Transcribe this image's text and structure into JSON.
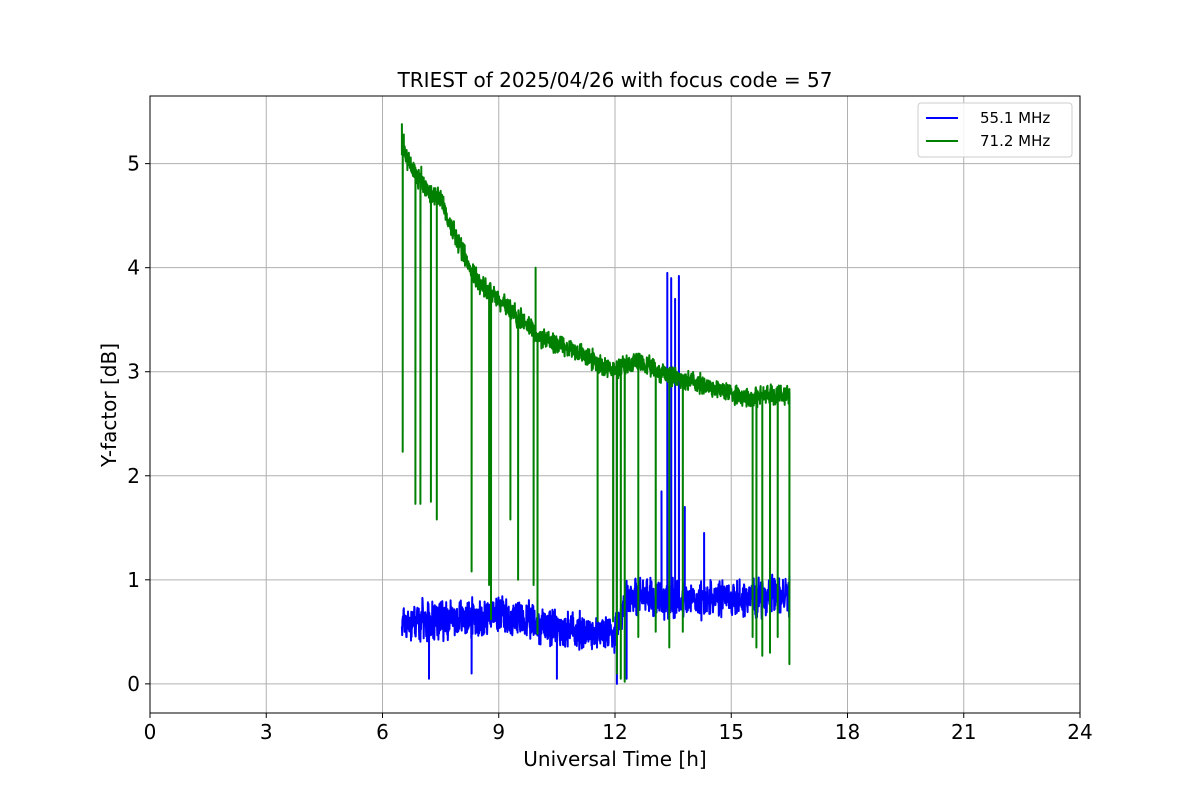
{
  "chart_data": {
    "type": "line",
    "title": "TRIEST of 2025/04/26 with focus code = 57",
    "xlabel": "Universal Time [h]",
    "ylabel": "Y-factor [dB]",
    "xlim": [
      0,
      24
    ],
    "ylim": [
      -0.28,
      5.65
    ],
    "x_ticks": [
      0,
      3,
      6,
      9,
      12,
      15,
      18,
      21,
      24
    ],
    "y_ticks": [
      0,
      1,
      2,
      3,
      4,
      5
    ],
    "grid": true,
    "legend_position": "top-right",
    "colors": {
      "blue": "#0000ff",
      "green": "#008000"
    },
    "series": [
      {
        "name": "55.1 MHz",
        "color": "#0000ff",
        "x_range": [
          6.5,
          16.5
        ],
        "baseline": [
          [
            6.5,
            0.6
          ],
          [
            9.0,
            0.65
          ],
          [
            11.0,
            0.5
          ],
          [
            12.0,
            0.5
          ],
          [
            12.3,
            0.85
          ],
          [
            14.0,
            0.8
          ],
          [
            16.5,
            0.85
          ]
        ],
        "noise_amplitude": 0.22,
        "spikes": [
          [
            13.35,
            3.95
          ],
          [
            13.45,
            3.9
          ],
          [
            13.55,
            3.7
          ],
          [
            13.65,
            3.92
          ],
          [
            13.2,
            1.85
          ],
          [
            13.8,
            1.7
          ],
          [
            14.3,
            1.45
          ]
        ],
        "dips": [
          [
            7.2,
            0.05
          ],
          [
            8.3,
            0.1
          ],
          [
            10.5,
            0.05
          ],
          [
            12.05,
            0.0
          ],
          [
            12.3,
            0.05
          ]
        ]
      },
      {
        "name": "71.2 MHz",
        "color": "#008000",
        "x_range": [
          6.5,
          16.5
        ],
        "baseline": [
          [
            6.5,
            5.15
          ],
          [
            7.0,
            4.8
          ],
          [
            7.5,
            4.65
          ],
          [
            8.0,
            4.2
          ],
          [
            8.5,
            3.85
          ],
          [
            9.0,
            3.7
          ],
          [
            10.0,
            3.35
          ],
          [
            11.0,
            3.2
          ],
          [
            12.0,
            3.0
          ],
          [
            12.5,
            3.1
          ],
          [
            13.5,
            2.95
          ],
          [
            14.5,
            2.85
          ],
          [
            15.5,
            2.75
          ],
          [
            16.5,
            2.8
          ]
        ],
        "noise_amplitude": 0.12,
        "spikes": [
          [
            6.5,
            5.38
          ],
          [
            9.95,
            4.0
          ],
          [
            6.55,
            5.28
          ],
          [
            7.0,
            4.97
          ]
        ],
        "dips": [
          [
            6.52,
            2.23
          ],
          [
            6.85,
            1.73
          ],
          [
            6.98,
            1.73
          ],
          [
            7.25,
            1.75
          ],
          [
            7.4,
            1.58
          ],
          [
            8.3,
            1.08
          ],
          [
            8.75,
            0.95
          ],
          [
            8.8,
            0.62
          ],
          [
            9.3,
            1.58
          ],
          [
            9.5,
            1.0
          ],
          [
            9.9,
            0.95
          ],
          [
            10.0,
            0.48
          ],
          [
            11.55,
            0.6
          ],
          [
            11.95,
            0.6
          ],
          [
            12.05,
            0.1
          ],
          [
            12.15,
            0.05
          ],
          [
            12.25,
            0.02
          ],
          [
            12.6,
            0.45
          ],
          [
            13.05,
            0.5
          ],
          [
            13.4,
            0.35
          ],
          [
            13.75,
            0.5
          ],
          [
            15.55,
            0.45
          ],
          [
            15.65,
            0.35
          ],
          [
            15.8,
            0.27
          ],
          [
            16.0,
            0.3
          ],
          [
            16.2,
            0.45
          ],
          [
            16.5,
            0.19
          ]
        ]
      }
    ]
  }
}
